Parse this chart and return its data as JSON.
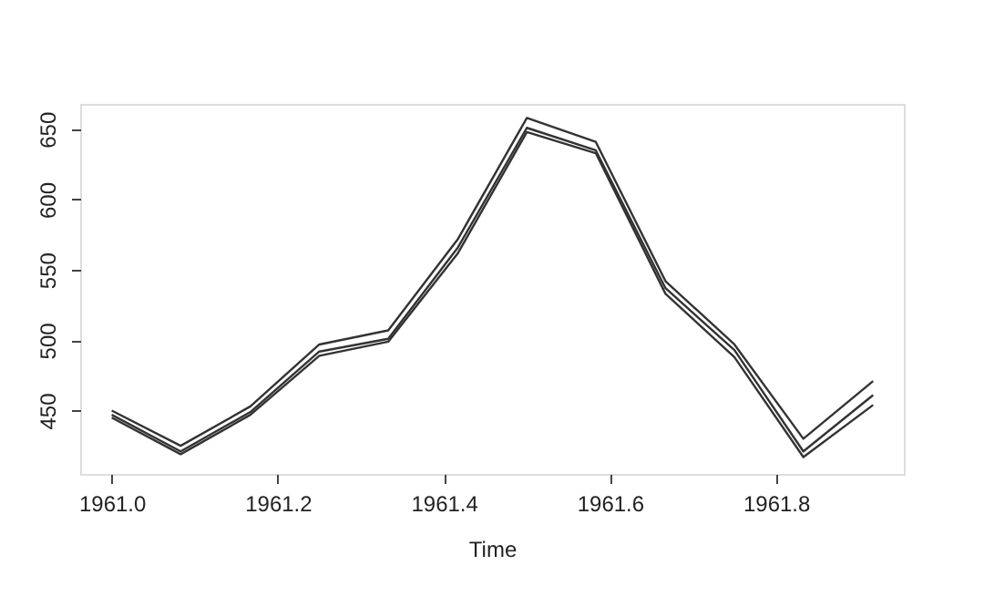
{
  "chart_data": {
    "type": "line",
    "xlabel": "Time",
    "x": [
      1961.0,
      1961.083,
      1961.167,
      1961.25,
      1961.333,
      1961.417,
      1961.5,
      1961.583,
      1961.667,
      1961.75,
      1961.833,
      1961.917
    ],
    "series": [
      {
        "color": "#333333",
        "values": [
          450,
          425,
          453,
          497,
          507,
          572,
          658,
          641,
          542,
          497,
          430,
          471
        ]
      },
      {
        "color": "#333333",
        "values": [
          447,
          421,
          449,
          492,
          501,
          566,
          651,
          635,
          537,
          493,
          421,
          461
        ]
      },
      {
        "color": "#333333",
        "values": [
          445,
          419,
          447,
          489,
          499,
          562,
          648,
          633,
          533,
          488,
          417,
          454
        ]
      }
    ],
    "xlim": [
      1960.962,
      1961.954
    ],
    "xticks": [
      {
        "value": 1961.0,
        "label": "1961.0"
      },
      {
        "value": 1961.2,
        "label": "1961.2"
      },
      {
        "value": 1961.4,
        "label": "1961.4"
      },
      {
        "value": 1961.6,
        "label": "1961.6"
      },
      {
        "value": 1961.8,
        "label": "1961.8"
      }
    ],
    "ylim": [
      405,
      668
    ],
    "yticks": [
      450,
      500,
      550,
      600,
      650
    ],
    "grid": false,
    "legend": false,
    "marker": "none",
    "line_style": "solid"
  }
}
